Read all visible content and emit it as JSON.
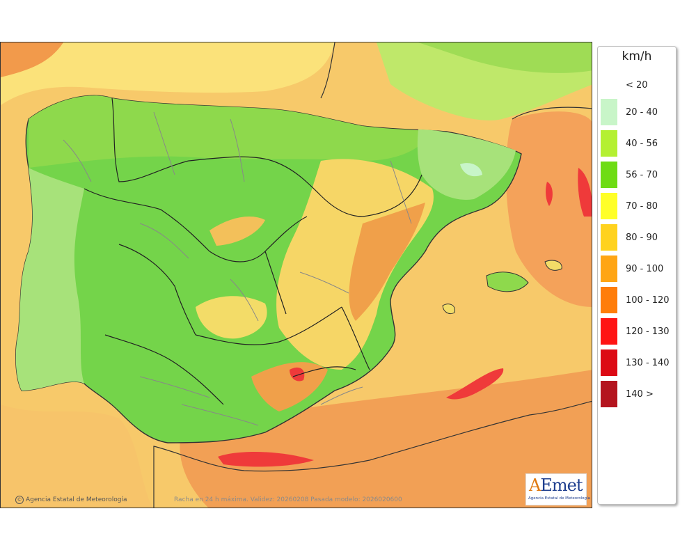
{
  "legend": {
    "unit": "km/h",
    "classes": [
      {
        "label": "< 20",
        "color": "#ffffff"
      },
      {
        "label": "20 - 40",
        "color": "#c8f5c8"
      },
      {
        "label": "40 - 56",
        "color": "#b4f032"
      },
      {
        "label": "56 - 70",
        "color": "#6edc14"
      },
      {
        "label": "70 - 80",
        "color": "#ffff28"
      },
      {
        "label": "80 - 90",
        "color": "#ffd21e"
      },
      {
        "label": "90 - 100",
        "color": "#ffa514"
      },
      {
        "label": "100 - 120",
        "color": "#ff7d0a"
      },
      {
        "label": "120 - 130",
        "color": "#ff1414"
      },
      {
        "label": "130 - 140",
        "color": "#dc0a14"
      },
      {
        "label": "140 >",
        "color": "#b4141e"
      }
    ]
  },
  "footer": {
    "credit": "Agencia Estatal de Meteorología",
    "validity": "Racha en 24 h máxima. Validez: 20260208 Pasada modelo: 2026020600"
  },
  "logo": {
    "text": "AEmet",
    "subtitle": "Agencia Estatal de Meteorología"
  }
}
